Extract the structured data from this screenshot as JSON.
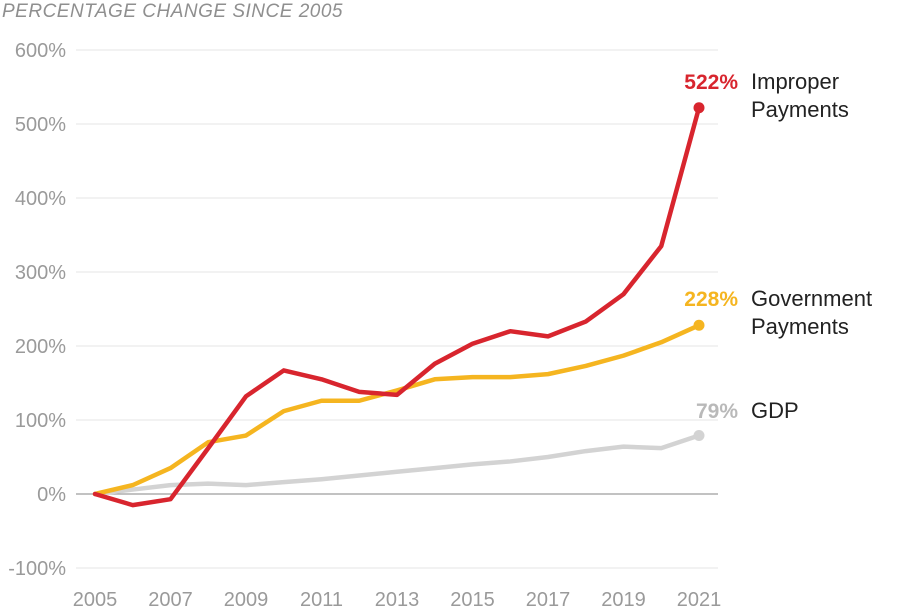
{
  "chart_data": {
    "type": "line",
    "subtitle": "PERCENTAGE CHANGE SINCE 2005",
    "title": "",
    "xlabel": "",
    "ylabel": "",
    "ylim": [
      -100,
      600
    ],
    "xlim": [
      2005,
      2021
    ],
    "y_ticks": [
      "600%",
      "500%",
      "400%",
      "300%",
      "200%",
      "100%",
      "0%",
      "-100%"
    ],
    "x_ticks": [
      "2005",
      "2007",
      "2009",
      "2011",
      "2013",
      "2015",
      "2017",
      "2019",
      "2021"
    ],
    "grid": true,
    "legend": "direct labels at line ends",
    "x": [
      2005,
      2006,
      2007,
      2008,
      2009,
      2010,
      2011,
      2012,
      2013,
      2014,
      2015,
      2016,
      2017,
      2018,
      2019,
      2020,
      2021
    ],
    "series": [
      {
        "key": "gdp",
        "name": "GDP",
        "end_label": "79%",
        "color": "#d3d3d3",
        "label_color": "#b9b9b9",
        "values": [
          0,
          6,
          12,
          14,
          12,
          16,
          20,
          25,
          30,
          35,
          40,
          44,
          50,
          58,
          64,
          62,
          79
        ]
      },
      {
        "key": "government",
        "name_lines": [
          "Government",
          "Payments"
        ],
        "end_label": "228%",
        "color": "#f5b520",
        "label_color": "#f5b520",
        "values": [
          0,
          12,
          35,
          70,
          79,
          112,
          126,
          126,
          140,
          155,
          158,
          158,
          162,
          173,
          187,
          205,
          228
        ]
      },
      {
        "key": "improper",
        "name_lines": [
          "Improper",
          "Payments"
        ],
        "end_label": "522%",
        "color": "#d8252e",
        "label_color": "#d8252e",
        "values": [
          0,
          -15,
          -7,
          62,
          132,
          167,
          155,
          138,
          134,
          176,
          203,
          220,
          213,
          233,
          270,
          335,
          522
        ]
      }
    ]
  }
}
